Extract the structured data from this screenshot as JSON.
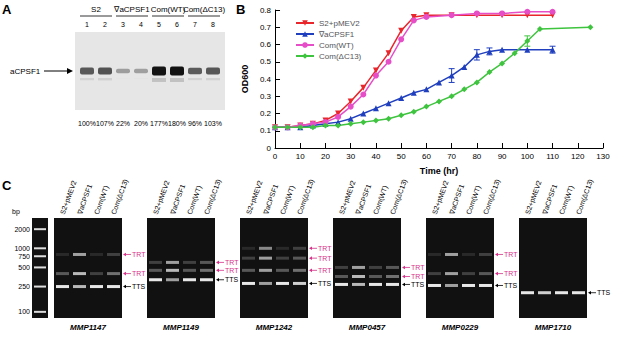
{
  "panel_labels": [
    "A",
    "B",
    "C"
  ],
  "blot": {
    "band_label": "aCPSF1",
    "groups": [
      {
        "label": "S2",
        "lanes": [
          "1",
          "2"
        ]
      },
      {
        "label": "∇aCPSF1",
        "lanes": [
          "3",
          "4"
        ]
      },
      {
        "label": "Com(WT)",
        "lanes": [
          "5",
          "6"
        ]
      },
      {
        "label": "Com(ΔC13)",
        "lanes": [
          "7",
          "8"
        ]
      }
    ],
    "lanes": [
      {
        "number": "1",
        "value": 100,
        "label": "100%"
      },
      {
        "number": "2",
        "value": 107,
        "label": "107%"
      },
      {
        "number": "3",
        "value": 22,
        "label": "22%"
      },
      {
        "number": "4",
        "value": 20,
        "label": "20%"
      },
      {
        "number": "5",
        "value": 177,
        "label": "177%"
      },
      {
        "number": "6",
        "value": 180,
        "label": "180%"
      },
      {
        "number": "7",
        "value": 96,
        "label": "96%"
      },
      {
        "number": "8",
        "value": 103,
        "label": "103%"
      }
    ]
  },
  "chart_data": {
    "type": "line",
    "x_label": "Time (hr)",
    "y_label": "OD600",
    "xlim": [
      0,
      130
    ],
    "xticks": [
      0,
      10,
      20,
      30,
      40,
      50,
      60,
      70,
      80,
      90,
      100,
      110,
      120,
      130
    ],
    "ylim": [
      0,
      0.8
    ],
    "yticks": [
      0,
      0.1,
      0.2,
      0.3,
      0.4,
      0.5,
      0.6,
      0.7,
      0.8
    ],
    "grid": false,
    "legend": "top-left",
    "series": [
      {
        "name": "S2+pMEV2",
        "color": "#e8262b",
        "marker": "triangle_down",
        "x": [
          0,
          5,
          10,
          15,
          20,
          25,
          30,
          35,
          40,
          45,
          50,
          55,
          60,
          70,
          80,
          90,
          100,
          110
        ],
        "values": [
          0.12,
          0.12,
          0.13,
          0.14,
          0.16,
          0.2,
          0.27,
          0.35,
          0.45,
          0.55,
          0.68,
          0.76,
          0.77,
          0.77,
          0.77,
          0.77,
          0.77,
          0.77
        ],
        "errors": [
          null,
          null,
          null,
          null,
          null,
          null,
          null,
          null,
          null,
          null,
          null,
          null,
          null,
          null,
          null,
          null,
          null,
          null
        ]
      },
      {
        "name": "∇aCPSF1",
        "color": "#1f3fbf",
        "marker": "triangle",
        "x": [
          0,
          5,
          10,
          15,
          20,
          25,
          30,
          35,
          40,
          45,
          50,
          55,
          60,
          65,
          70,
          75,
          80,
          85,
          90,
          100,
          110
        ],
        "values": [
          0.12,
          0.12,
          0.12,
          0.13,
          0.14,
          0.15,
          0.17,
          0.2,
          0.23,
          0.26,
          0.29,
          0.32,
          0.34,
          0.38,
          0.42,
          0.47,
          0.54,
          0.56,
          0.57,
          0.57,
          0.57
        ],
        "errors": [
          null,
          null,
          null,
          null,
          null,
          null,
          null,
          null,
          null,
          null,
          null,
          null,
          null,
          null,
          0.04,
          null,
          0.03,
          0.02,
          null,
          null,
          0.02
        ]
      },
      {
        "name": "Com(WT)",
        "color": "#e64ec8",
        "marker": "circle",
        "x": [
          0,
          5,
          10,
          15,
          20,
          25,
          30,
          35,
          40,
          45,
          50,
          55,
          60,
          70,
          80,
          90,
          100,
          110
        ],
        "values": [
          0.12,
          0.12,
          0.13,
          0.14,
          0.15,
          0.18,
          0.24,
          0.31,
          0.42,
          0.5,
          0.63,
          0.74,
          0.76,
          0.77,
          0.78,
          0.78,
          0.79,
          0.79
        ],
        "errors": [
          null,
          null,
          null,
          null,
          null,
          null,
          null,
          null,
          null,
          null,
          null,
          null,
          null,
          null,
          null,
          null,
          null,
          null
        ]
      },
      {
        "name": "Com(ΔC13)",
        "color": "#3ec43e",
        "marker": "diamond",
        "x": [
          0,
          5,
          10,
          15,
          20,
          25,
          30,
          35,
          40,
          45,
          50,
          55,
          60,
          65,
          70,
          75,
          80,
          85,
          90,
          95,
          100,
          105,
          125
        ],
        "values": [
          0.12,
          0.12,
          0.12,
          0.12,
          0.13,
          0.13,
          0.14,
          0.15,
          0.16,
          0.17,
          0.19,
          0.21,
          0.24,
          0.27,
          0.3,
          0.34,
          0.38,
          0.44,
          0.49,
          0.55,
          0.62,
          0.69,
          0.7
        ],
        "errors": [
          null,
          null,
          null,
          null,
          null,
          null,
          null,
          null,
          null,
          null,
          null,
          null,
          null,
          null,
          null,
          null,
          null,
          null,
          null,
          null,
          0.03,
          null,
          null
        ]
      }
    ]
  },
  "gels": {
    "unit": "bp",
    "bp_range": [
      3000,
      80
    ],
    "ladder": [
      2000,
      1000,
      750,
      500,
      250,
      100
    ],
    "lanes": [
      "S2+pMEV2",
      "∇aCPSF1",
      "Com(WT)",
      "Com(ΔC13)"
    ],
    "label_colors": {
      "TRT": "#d6338a",
      "TTS": "#000000"
    },
    "gels": [
      {
        "name": "MMP1147",
        "bands": [
          {
            "label": "TRT",
            "bp": 800,
            "intensity": [
              0.1,
              0.6,
              0.1,
              0.2
            ]
          },
          {
            "label": "TRT",
            "bp": 400,
            "intensity": [
              0.3,
              0.7,
              0.2,
              0.4
            ]
          },
          {
            "label": "TTS",
            "bp": 250,
            "intensity": [
              0.9,
              0.7,
              0.9,
              0.9
            ]
          }
        ]
      },
      {
        "name": "MMP1149",
        "bands": [
          {
            "label": "TRT",
            "bp": 600,
            "intensity": [
              0.2,
              0.6,
              0.2,
              0.3
            ]
          },
          {
            "label": "TRT",
            "bp": 450,
            "intensity": [
              0.3,
              0.7,
              0.3,
              0.4
            ]
          },
          {
            "label": "TTS",
            "bp": 320,
            "intensity": [
              0.9,
              0.6,
              0.9,
              0.9
            ]
          }
        ]
      },
      {
        "name": "MMP1242",
        "bands": [
          {
            "label": "TRT",
            "bp": 1000,
            "intensity": [
              0.1,
              0.5,
              0.1,
              0.2
            ]
          },
          {
            "label": "TRT",
            "bp": 700,
            "intensity": [
              0.2,
              0.6,
              0.2,
              0.3
            ]
          },
          {
            "label": "TRT",
            "bp": 450,
            "intensity": [
              0.3,
              0.6,
              0.3,
              0.4
            ]
          },
          {
            "label": "TTS",
            "bp": 280,
            "intensity": [
              0.9,
              0.6,
              0.9,
              0.8
            ]
          }
        ]
      },
      {
        "name": "MMP0457",
        "bands": [
          {
            "label": "TRT",
            "bp": 500,
            "intensity": [
              0.2,
              0.6,
              0.2,
              0.3
            ]
          },
          {
            "label": "TRT",
            "bp": 360,
            "intensity": [
              0.3,
              0.7,
              0.3,
              0.4
            ]
          },
          {
            "label": "TTS",
            "bp": 270,
            "intensity": [
              0.9,
              0.7,
              0.9,
              0.9
            ]
          }
        ]
      },
      {
        "name": "MMP0229",
        "bands": [
          {
            "label": "TRT",
            "bp": 800,
            "intensity": [
              0.1,
              0.6,
              0.1,
              0.2
            ]
          },
          {
            "label": "TRT",
            "bp": 400,
            "intensity": [
              0.2,
              0.6,
              0.2,
              0.3
            ]
          },
          {
            "label": "TTS",
            "bp": 260,
            "intensity": [
              0.9,
              0.6,
              0.9,
              0.9
            ]
          }
        ]
      },
      {
        "name": "MMP1710",
        "bands": [
          {
            "label": "TTS",
            "bp": 200,
            "intensity": [
              0.9,
              0.8,
              0.9,
              0.9
            ]
          }
        ]
      }
    ]
  }
}
